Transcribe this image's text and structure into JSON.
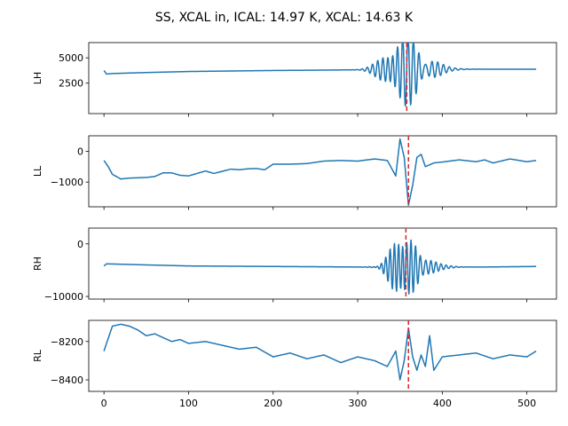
{
  "chart_data": {
    "title": "SS, XCAL in, ICAL: 14.97 K, XCAL: 14.63 K",
    "type": "line",
    "line_color": "#1f77b4",
    "marker_color": "#d62728",
    "xlim": [
      -18,
      535
    ],
    "x_ticks": [
      0,
      100,
      200,
      300,
      400,
      500
    ],
    "subplots": [
      {
        "ylabel": "LH",
        "ylim": [
          -500,
          6500
        ],
        "y_ticks": [
          2500,
          5000
        ],
        "marker_x": 358,
        "baseline": [
          [
            0,
            3750
          ],
          [
            3,
            3400
          ],
          [
            10,
            3450
          ],
          [
            50,
            3550
          ],
          [
            100,
            3650
          ],
          [
            150,
            3700
          ],
          [
            200,
            3750
          ],
          [
            250,
            3780
          ],
          [
            300,
            3820
          ],
          [
            320,
            3850
          ],
          [
            340,
            3850
          ],
          [
            355,
            3850
          ],
          [
            365,
            3850
          ],
          [
            400,
            3870
          ],
          [
            450,
            3880
          ],
          [
            500,
            3880
          ],
          [
            511,
            3880
          ]
        ],
        "bursts": [
          {
            "center": 352,
            "period": 6,
            "sigma": 18,
            "amp": 2500,
            "phase": 0
          },
          {
            "center": 366,
            "period": 7,
            "sigma": 22,
            "amp": 1500,
            "phase": 1.2
          }
        ]
      },
      {
        "ylabel": "LL",
        "ylim": [
          -1800,
          500
        ],
        "y_ticks": [
          -1000,
          0
        ],
        "marker_x": 360,
        "baseline": [
          [
            0,
            -300
          ],
          [
            5,
            -500
          ],
          [
            10,
            -750
          ],
          [
            20,
            -900
          ],
          [
            30,
            -870
          ],
          [
            50,
            -850
          ],
          [
            60,
            -820
          ],
          [
            70,
            -700
          ],
          [
            80,
            -700
          ],
          [
            90,
            -780
          ],
          [
            100,
            -800
          ],
          [
            110,
            -720
          ],
          [
            120,
            -640
          ],
          [
            130,
            -720
          ],
          [
            140,
            -650
          ],
          [
            150,
            -580
          ],
          [
            160,
            -600
          ],
          [
            170,
            -570
          ],
          [
            180,
            -560
          ],
          [
            190,
            -600
          ],
          [
            200,
            -420
          ],
          [
            220,
            -420
          ],
          [
            240,
            -400
          ],
          [
            260,
            -320
          ],
          [
            280,
            -300
          ],
          [
            300,
            -320
          ],
          [
            320,
            -250
          ],
          [
            335,
            -300
          ],
          [
            345,
            -800
          ],
          [
            350,
            400
          ],
          [
            355,
            -200
          ],
          [
            360,
            -1750
          ],
          [
            365,
            -1100
          ],
          [
            370,
            -200
          ],
          [
            375,
            -100
          ],
          [
            380,
            -500
          ],
          [
            390,
            -380
          ],
          [
            400,
            -350
          ],
          [
            420,
            -280
          ],
          [
            440,
            -340
          ],
          [
            450,
            -280
          ],
          [
            460,
            -380
          ],
          [
            480,
            -250
          ],
          [
            500,
            -340
          ],
          [
            511,
            -300
          ]
        ]
      },
      {
        "ylabel": "RH",
        "ylim": [
          -10500,
          3000
        ],
        "y_ticks": [
          -10000,
          0
        ],
        "marker_x": 357,
        "baseline": [
          [
            0,
            -4200
          ],
          [
            3,
            -3800
          ],
          [
            50,
            -4000
          ],
          [
            100,
            -4200
          ],
          [
            200,
            -4300
          ],
          [
            300,
            -4400
          ],
          [
            350,
            -4450
          ],
          [
            400,
            -4400
          ],
          [
            450,
            -4400
          ],
          [
            511,
            -4300
          ]
        ],
        "bursts": [
          {
            "center": 352,
            "period": 5,
            "sigma": 12,
            "amp": 5500,
            "phase": 0
          },
          {
            "center": 368,
            "period": 6,
            "sigma": 20,
            "amp": 2000,
            "phase": 1.0
          }
        ]
      },
      {
        "ylabel": "RL",
        "ylim": [
          -8460,
          -8090
        ],
        "y_ticks": [
          -8400,
          -8200
        ],
        "marker_x": 360,
        "baseline": [
          [
            0,
            -8250
          ],
          [
            3,
            -8210
          ],
          [
            10,
            -8120
          ],
          [
            20,
            -8110
          ],
          [
            30,
            -8120
          ],
          [
            40,
            -8140
          ],
          [
            50,
            -8170
          ],
          [
            60,
            -8160
          ],
          [
            70,
            -8180
          ],
          [
            80,
            -8200
          ],
          [
            90,
            -8190
          ],
          [
            100,
            -8210
          ],
          [
            120,
            -8200
          ],
          [
            140,
            -8220
          ],
          [
            160,
            -8240
          ],
          [
            180,
            -8230
          ],
          [
            200,
            -8280
          ],
          [
            220,
            -8260
          ],
          [
            240,
            -8290
          ],
          [
            260,
            -8270
          ],
          [
            280,
            -8310
          ],
          [
            300,
            -8280
          ],
          [
            320,
            -8300
          ],
          [
            335,
            -8330
          ],
          [
            345,
            -8250
          ],
          [
            350,
            -8400
          ],
          [
            355,
            -8300
          ],
          [
            360,
            -8130
          ],
          [
            365,
            -8280
          ],
          [
            370,
            -8350
          ],
          [
            375,
            -8270
          ],
          [
            380,
            -8330
          ],
          [
            385,
            -8170
          ],
          [
            390,
            -8350
          ],
          [
            400,
            -8280
          ],
          [
            420,
            -8270
          ],
          [
            440,
            -8260
          ],
          [
            460,
            -8290
          ],
          [
            480,
            -8270
          ],
          [
            500,
            -8280
          ],
          [
            511,
            -8250
          ]
        ]
      }
    ]
  }
}
